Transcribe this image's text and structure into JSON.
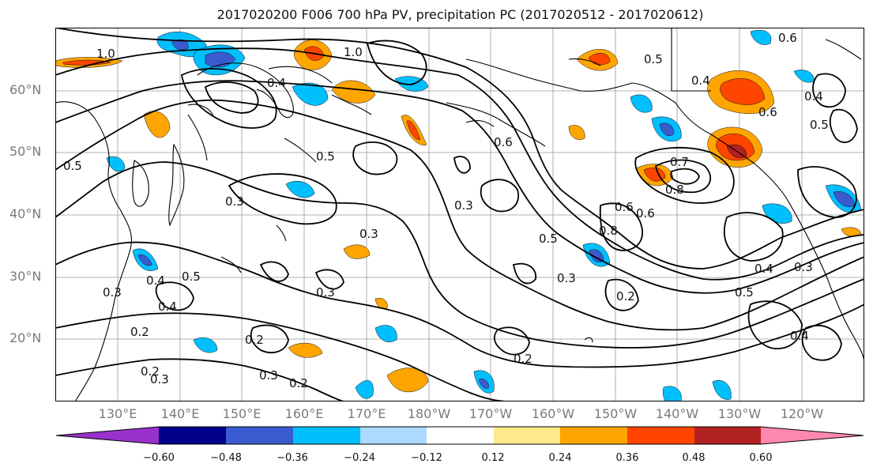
{
  "title": "2017020200 F006 700 hPa PV, precipitation PC (2017020512 - 2017020612)",
  "lat_labels": [
    "60°N",
    "50°N",
    "40°N",
    "30°N",
    "20°N"
  ],
  "lon_labels": [
    "130°E",
    "140°E",
    "150°E",
    "160°E",
    "170°E",
    "180°W",
    "170°W",
    "160°W",
    "150°W",
    "140°W",
    "130°W",
    "120°W"
  ],
  "contour_labels": [
    "1.0",
    "1.0",
    "0.5",
    "0.4",
    "0.6",
    "0.5",
    "0.4",
    "0.5",
    "0.3",
    "0.2",
    "0.3",
    "0.4",
    "0.5",
    "0.3",
    "0.4",
    "0.2",
    "0.2",
    "0.3",
    "0.2",
    "0.3",
    "0.2",
    "0.3",
    "0.5",
    "0.6",
    "0.8",
    "0.7",
    "0.6",
    "0.8",
    "0.3",
    "0.2",
    "0.3",
    "0.5",
    "0.4",
    "0.3",
    "0.4",
    "0.6",
    "0.6",
    "0.4",
    "0.5"
  ],
  "colorbar": {
    "ticks": [
      "−0.60",
      "−0.48",
      "−0.36",
      "−0.24",
      "−0.12",
      "0.12",
      "0.24",
      "0.36",
      "0.48",
      "0.60"
    ],
    "colors": [
      "#9932cc",
      "#00008b",
      "#3a5bd0",
      "#00bfff",
      "#add8ff",
      "#ffffff",
      "#ffe98a",
      "#ffa500",
      "#ff4500",
      "#b22222",
      "#ff88b0"
    ]
  }
}
